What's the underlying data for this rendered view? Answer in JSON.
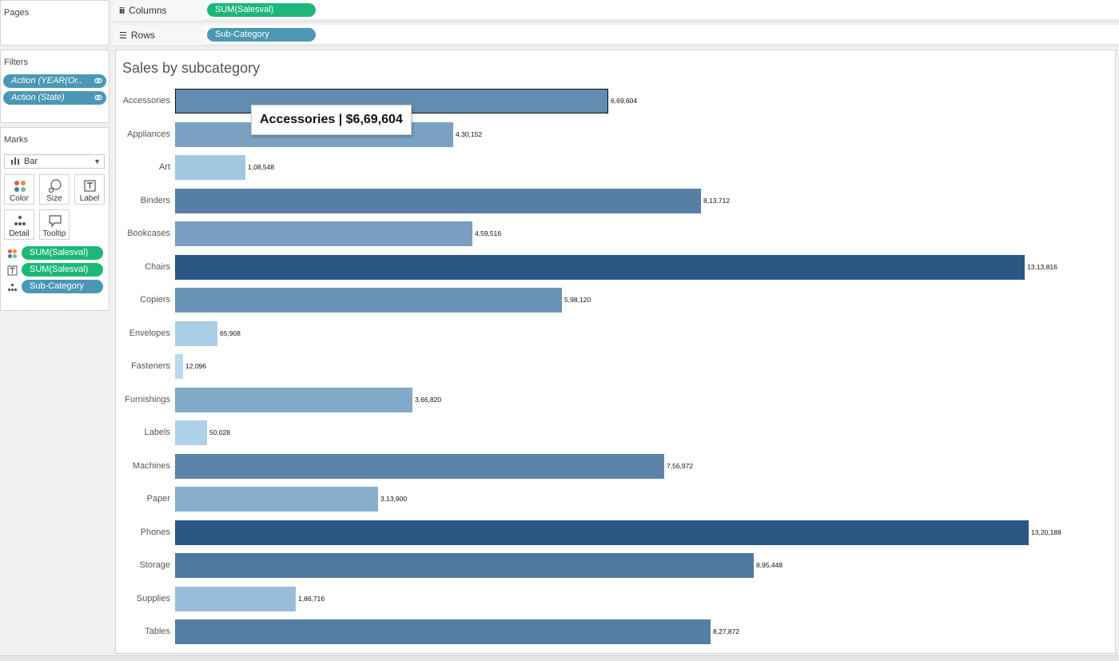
{
  "pages": {
    "title": "Pages"
  },
  "shelves": {
    "columns": {
      "label": "Columns",
      "pill": "SUM(Salesval)"
    },
    "rows": {
      "label": "Rows",
      "pill": "Sub-Category"
    }
  },
  "filters": {
    "title": "Filters",
    "items": [
      "Action (YEAR(Or..",
      "Action (State)"
    ]
  },
  "marks": {
    "title": "Marks",
    "type": "Bar",
    "buttons": [
      "Color",
      "Size",
      "Label",
      "Detail",
      "Tooltip"
    ],
    "fields": [
      {
        "role": "color",
        "pill": "SUM(Salesval)",
        "kind": "measure"
      },
      {
        "role": "label",
        "pill": "SUM(Salesval)",
        "kind": "measure"
      },
      {
        "role": "detail",
        "pill": "Sub-Category",
        "kind": "dimension"
      }
    ]
  },
  "tooltip": {
    "text": "Accessories | $6,69,604"
  },
  "colors": {
    "measure_pill": "#1db879",
    "dimension_pill": "#4a98b5",
    "bar_light": "#b7daf0",
    "bar_dark": "#2b5784"
  },
  "chart_data": {
    "type": "bar",
    "orientation": "horizontal",
    "title": "Sales by subcategory",
    "categories": [
      "Accessories",
      "Appliances",
      "Art",
      "Binders",
      "Bookcases",
      "Chairs",
      "Copiers",
      "Envelopes",
      "Fasteners",
      "Furnishings",
      "Labels",
      "Machines",
      "Paper",
      "Phones",
      "Storage",
      "Supplies",
      "Tables"
    ],
    "values": [
      669604,
      430152,
      108548,
      813712,
      459516,
      1313816,
      598120,
      65908,
      12096,
      366820,
      50028,
      756972,
      313900,
      1320188,
      895448,
      186716,
      827872
    ],
    "value_labels": [
      "6,69,604",
      "4,30,152",
      "1,08,548",
      "8,13,712",
      "4,59,516",
      "13,13,816",
      "5,98,120",
      "65,908",
      "12,096",
      "3,66,820",
      "50,028",
      "7,56,972",
      "3,13,900",
      "13,20,188",
      "8,95,448",
      "1,86,716",
      "8,27,872"
    ],
    "selected": "Accessories",
    "xlim": [
      0,
      1320188
    ]
  }
}
